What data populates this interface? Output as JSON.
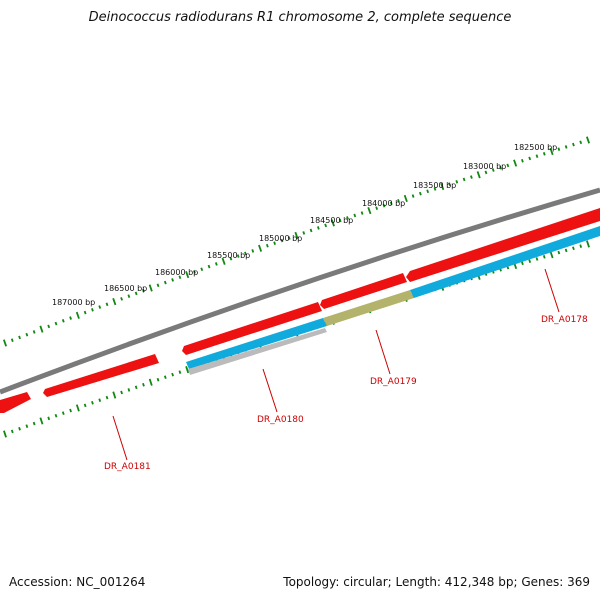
{
  "title": "Deinococcus radiodurans R1 chromosome 2, complete sequence",
  "footer": {
    "accession": "Accession: NC_001264",
    "topology": "Topology: circular; Length: 412,348 bp; Genes: 369"
  },
  "colors": {
    "backbone": "#7a7a7a",
    "cds": "#ee1111",
    "gene": "#11aadd",
    "rna": "#b3b36b",
    "misc": "#bbbbbb",
    "ticks": "#118811",
    "label": "#cc0000"
  },
  "ruler": [
    "187000 bp",
    "186500 bp",
    "186000 bp",
    "185500 bp",
    "185000 bp",
    "184500 bp",
    "184000 bp",
    "183500 bp",
    "183000 bp",
    "182500 bp"
  ],
  "genes": [
    "DR_A0181",
    "DR_A0180",
    "DR_A0179",
    "DR_A0178"
  ]
}
